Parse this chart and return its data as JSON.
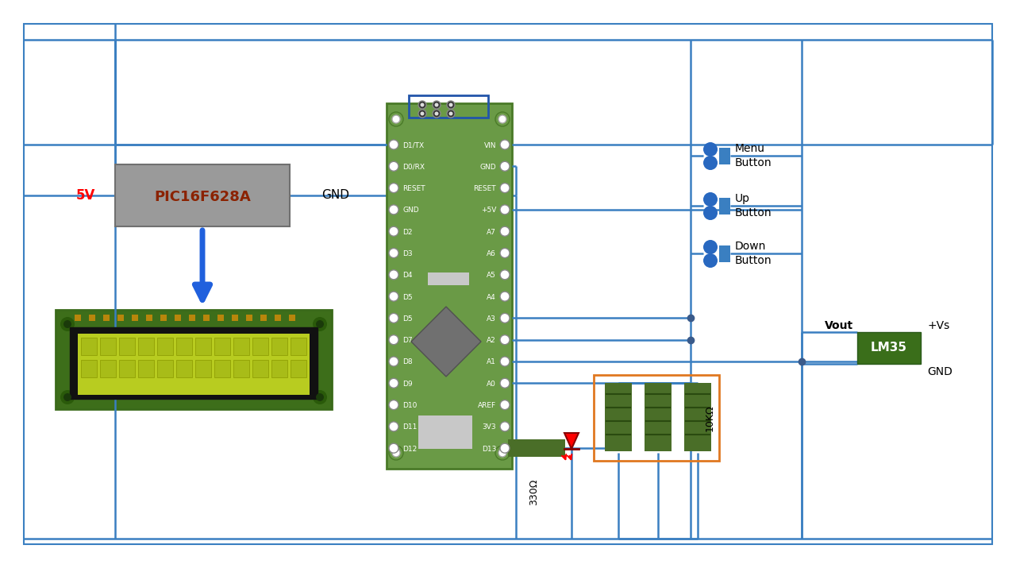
{
  "bg_color": "#ffffff",
  "wire_color": "#3a7fc1",
  "wire_lw": 1.8,
  "board_green": "#6a9a46",
  "board_edge": "#4a7a28",
  "resistor_green": "#4a6e28",
  "pic_gray": "#9a9a9a",
  "orange_color": "#e07820",
  "arduino_pins_left": [
    "D1/TX",
    "D0/RX",
    "RESET",
    "GND",
    "D2",
    "D3",
    "D4",
    "D5",
    "D5",
    "D7",
    "D8",
    "D9",
    "D10",
    "D11",
    "D12"
  ],
  "arduino_pins_right": [
    "VIN",
    "GND",
    "RESET",
    "+5V",
    "A7",
    "A6",
    "A5",
    "A4",
    "A3",
    "A2",
    "A1",
    "A0",
    "AREF",
    "3V3",
    "D13"
  ],
  "btn_labels": [
    "Menu\nButton",
    "Up\nButton",
    "Down\nButton"
  ]
}
